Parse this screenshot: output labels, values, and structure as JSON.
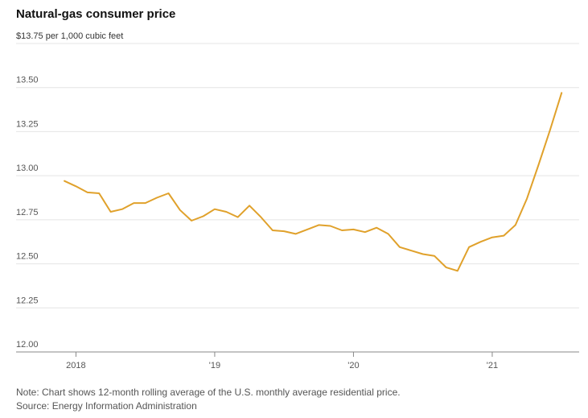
{
  "title": "Natural-gas consumer price",
  "note": "Note: Chart shows 12-month rolling average of the U.S. monthly average residential price.",
  "source": "Source: Energy Information Administration",
  "colors": {
    "line": "#E0A12B",
    "grid": "#e4e4e4",
    "axis": "#888888"
  },
  "chart_data": {
    "type": "line",
    "title": "Natural-gas consumer price",
    "ylabel": "$ per 1,000 cubic feet",
    "ylim": [
      12.0,
      13.75
    ],
    "yticks": [
      {
        "value": 13.75,
        "label": "$13.75 per 1,000 cubic feet"
      },
      {
        "value": 13.5,
        "label": "13.50"
      },
      {
        "value": 13.25,
        "label": "13.25"
      },
      {
        "value": 13.0,
        "label": "13.00"
      },
      {
        "value": 12.75,
        "label": "12.75"
      },
      {
        "value": 12.5,
        "label": "12.50"
      },
      {
        "value": 12.25,
        "label": "12.25"
      },
      {
        "value": 12.0,
        "label": "12.00"
      }
    ],
    "xlim": [
      2017.87,
      2021.58
    ],
    "xticks": [
      {
        "value": 2018.0,
        "label": "2018"
      },
      {
        "value": 2019.0,
        "label": "'19"
      },
      {
        "value": 2020.0,
        "label": "'20"
      },
      {
        "value": 2021.0,
        "label": "'21"
      }
    ],
    "grid": true,
    "series": [
      {
        "name": "12-month rolling average residential price",
        "x": [
          2017.917,
          2018.0,
          2018.083,
          2018.167,
          2018.25,
          2018.333,
          2018.417,
          2018.5,
          2018.583,
          2018.667,
          2018.75,
          2018.833,
          2018.917,
          2019.0,
          2019.083,
          2019.167,
          2019.25,
          2019.333,
          2019.417,
          2019.5,
          2019.583,
          2019.667,
          2019.75,
          2019.833,
          2019.917,
          2020.0,
          2020.083,
          2020.167,
          2020.25,
          2020.333,
          2020.417,
          2020.5,
          2020.583,
          2020.667,
          2020.75,
          2020.833,
          2020.917,
          2021.0,
          2021.083,
          2021.167,
          2021.25,
          2021.333,
          2021.417,
          2021.5
        ],
        "values": [
          12.97,
          12.94,
          12.905,
          12.9,
          12.795,
          12.81,
          12.845,
          12.845,
          12.875,
          12.9,
          12.805,
          12.745,
          12.77,
          12.81,
          12.795,
          12.765,
          12.83,
          12.765,
          12.69,
          12.685,
          12.67,
          12.695,
          12.72,
          12.715,
          12.69,
          12.695,
          12.68,
          12.705,
          12.67,
          12.595,
          12.575,
          12.555,
          12.545,
          12.48,
          12.46,
          12.595,
          12.625,
          12.65,
          12.66,
          12.72,
          12.87,
          13.06,
          13.26,
          13.47
        ]
      }
    ]
  }
}
